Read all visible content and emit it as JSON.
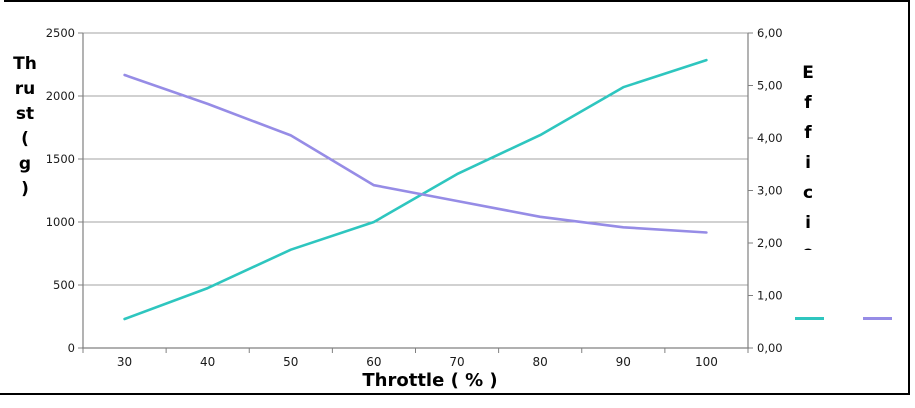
{
  "frame": {
    "background": "#ffffff",
    "border_color": "#000000"
  },
  "chart_data": {
    "type": "line",
    "title": "",
    "categories": [
      30,
      40,
      50,
      60,
      70,
      80,
      90,
      100
    ],
    "x_axis": {
      "label": "Throttle ( % )",
      "tick_labels": [
        "30",
        "40",
        "50",
        "60",
        "70",
        "80",
        "90",
        "100"
      ]
    },
    "y_axis_left": {
      "label": "Thrust ( g )",
      "label_stacked": [
        "Th",
        "ru",
        "st",
        "(",
        "g",
        ")"
      ],
      "min": 0,
      "max": 2500,
      "step": 500,
      "tick_labels": [
        "0",
        "500",
        "1000",
        "1500",
        "2000",
        "2500"
      ]
    },
    "y_axis_right": {
      "label": "Efficie",
      "label_stacked": [
        "E",
        "f",
        "f",
        "i",
        "c",
        "i",
        "e"
      ],
      "min": 0,
      "max": 6,
      "step": 1,
      "tick_labels": [
        "0,00",
        "1,00",
        "2,00",
        "3,00",
        "4,00",
        "5,00",
        "6,00"
      ]
    },
    "series": [
      {
        "name": "Thrust",
        "axis": "left",
        "color": "#2EC6BF",
        "values": [
          230,
          475,
          780,
          1000,
          1380,
          1690,
          2070,
          2285
        ]
      },
      {
        "name": "Efficiency",
        "axis": "right",
        "color": "#968CE6",
        "values": [
          5.2,
          4.65,
          4.05,
          3.1,
          2.8,
          2.5,
          2.3,
          2.2
        ]
      }
    ],
    "grid": true,
    "legend_position": "right",
    "colors": {
      "gridline": "#A3A3A3",
      "axis": "#808080",
      "tick_text": "#1a1a1a"
    }
  },
  "legend": {
    "swatches": [
      {
        "series": "Thrust",
        "color": "#2EC6BF"
      },
      {
        "series": "Efficiency",
        "color": "#968CE6"
      }
    ]
  }
}
